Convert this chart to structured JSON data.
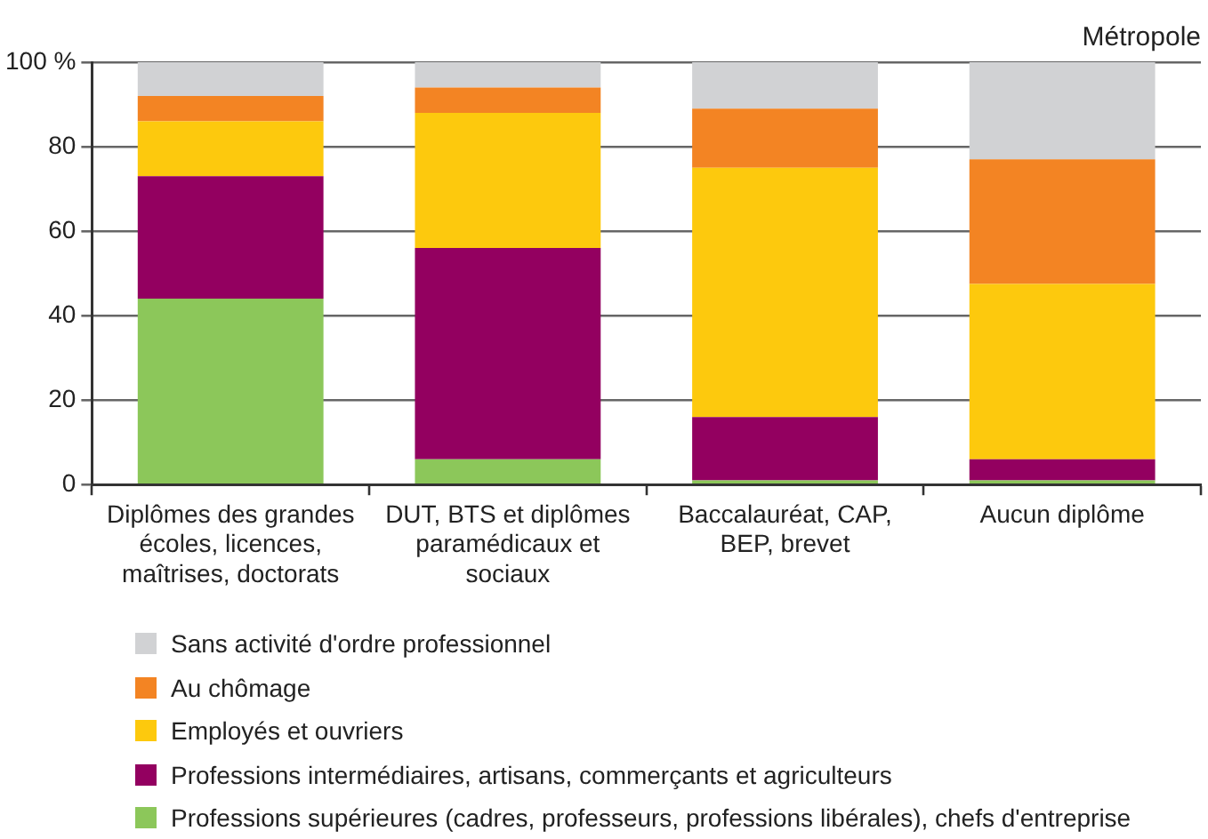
{
  "chart_data": {
    "type": "bar",
    "stacked": true,
    "annotations": [
      "Métropole"
    ],
    "categories": [
      "Diplômes des grandes écoles, licences, maîtrises, doctorats",
      "DUT, BTS et diplômes paramédicaux et sociaux",
      "Baccalauréat, CAP, BEP, brevet",
      "Aucun diplôme"
    ],
    "series": [
      {
        "name": "Professions supérieures (cadres, professeurs, professions libérales), chefs d'entreprise",
        "color": "#8cc75a",
        "values": [
          44,
          6,
          1,
          1
        ]
      },
      {
        "name": "Professions intermédiaires, artisans, commerçants et agriculteurs",
        "color": "#930060",
        "values": [
          29,
          50,
          15,
          5
        ]
      },
      {
        "name": "Employés et ouvriers",
        "color": "#fdc90d",
        "values": [
          13,
          32,
          59,
          41.5
        ]
      },
      {
        "name": "Au chômage",
        "color": "#f38423",
        "values": [
          6,
          6,
          14,
          29.5
        ]
      },
      {
        "name": "Sans activité d'ordre professionnel",
        "color": "#d1d2d4",
        "values": [
          8,
          6,
          11,
          23
        ]
      }
    ],
    "ylim": [
      0,
      100
    ],
    "yticks": [
      0,
      20,
      40,
      60,
      80,
      {
        "value": 100,
        "label": "100 %"
      }
    ],
    "grid": "y",
    "legend": "bottom"
  }
}
